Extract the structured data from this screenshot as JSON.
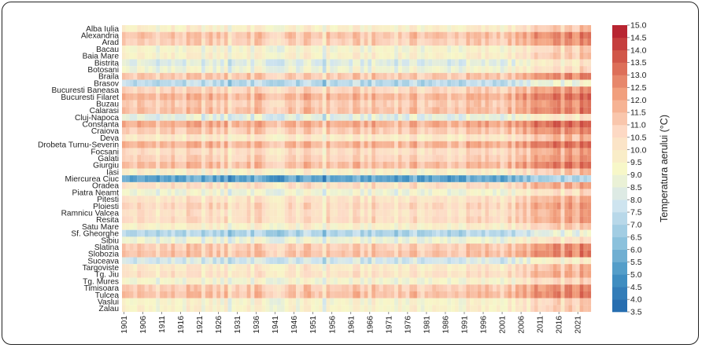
{
  "chart_data": {
    "type": "heatmap",
    "title": "",
    "xlabel": "",
    "ylabel": "",
    "x_start_year": 1901,
    "x_end_year": 2024,
    "x_tick_labels": [
      "1901",
      "1906",
      "1911",
      "1916",
      "1921",
      "1926",
      "1931",
      "1936",
      "1941",
      "1946",
      "1951",
      "1956",
      "1961",
      "1966",
      "1971",
      "1976",
      "1981",
      "1986",
      "1991",
      "1996",
      "2001",
      "2006",
      "2011",
      "2016",
      "2021"
    ],
    "stations": [
      {
        "name": "Alba Iulia",
        "base": 9.6
      },
      {
        "name": "Alexandria",
        "base": 11.2
      },
      {
        "name": "Arad",
        "base": 10.9
      },
      {
        "name": "Bacau",
        "base": 9.2
      },
      {
        "name": "Baia Mare",
        "base": 9.5
      },
      {
        "name": "Bistrita",
        "base": 8.3
      },
      {
        "name": "Botosani",
        "base": 8.9
      },
      {
        "name": "Braila",
        "base": 11.1
      },
      {
        "name": "Brasov",
        "base": 7.3
      },
      {
        "name": "Bucuresti Baneasa",
        "base": 10.7
      },
      {
        "name": "Bucuresti Filaret",
        "base": 11.6
      },
      {
        "name": "Buzau",
        "base": 11.0
      },
      {
        "name": "Calarasi",
        "base": 11.3
      },
      {
        "name": "Cluj-Napoca",
        "base": 8.4
      },
      {
        "name": "Constanta",
        "base": 11.8
      },
      {
        "name": "Craiova",
        "base": 11.0
      },
      {
        "name": "Deva",
        "base": 9.9
      },
      {
        "name": "Drobeta Turnu-Severin",
        "base": 11.6
      },
      {
        "name": "Focsani",
        "base": 10.4
      },
      {
        "name": "Galati",
        "base": 10.8
      },
      {
        "name": "Giurgiu",
        "base": 11.4
      },
      {
        "name": "Iasi",
        "base": 9.6
      },
      {
        "name": "Miercurea Ciuc",
        "base": 5.4
      },
      {
        "name": "Oradea",
        "base": 10.3
      },
      {
        "name": "Piatra Neamt",
        "base": 8.9
      },
      {
        "name": "Pitesti",
        "base": 10.2
      },
      {
        "name": "Ploiesti",
        "base": 10.6
      },
      {
        "name": "Ramnicu Valcea",
        "base": 10.3
      },
      {
        "name": "Resita",
        "base": 10.5
      },
      {
        "name": "Satu Mare",
        "base": 9.5
      },
      {
        "name": "Sf. Gheorghe",
        "base": 7.1
      },
      {
        "name": "Sibiu",
        "base": 8.8
      },
      {
        "name": "Slatina",
        "base": 11.0
      },
      {
        "name": "Slobozia",
        "base": 11.2
      },
      {
        "name": "Suceava",
        "base": 7.9
      },
      {
        "name": "Targoviste",
        "base": 9.9
      },
      {
        "name": "Tg. Jiu",
        "base": 10.2
      },
      {
        "name": "Tg. Mures",
        "base": 9.1
      },
      {
        "name": "Timisoara",
        "base": 11.0
      },
      {
        "name": "Tulcea",
        "base": 11.3
      },
      {
        "name": "Vaslui",
        "base": 9.3
      },
      {
        "name": "Zalau",
        "base": 9.4
      }
    ],
    "colorbar": {
      "label": "Temperatura aerului (°C)",
      "min": 3.5,
      "max": 15.0,
      "ticks": [
        "15.0",
        "14.5",
        "14.0",
        "13.5",
        "13.0",
        "12.5",
        "12.0",
        "11.5",
        "11.0",
        "10.5",
        "10.0",
        "9.5",
        "9.0",
        "8.5",
        "8.0",
        "7.5",
        "7.0",
        "6.5",
        "6.0",
        "5.5",
        "5.0",
        "4.5",
        "4.0",
        "3.5"
      ],
      "colormap": [
        "#2166ac",
        "#4393c3",
        "#92c5de",
        "#d1e5f0",
        "#f7f7c8",
        "#fddbc7",
        "#f4a582",
        "#d6604d",
        "#b2182b"
      ]
    }
  }
}
